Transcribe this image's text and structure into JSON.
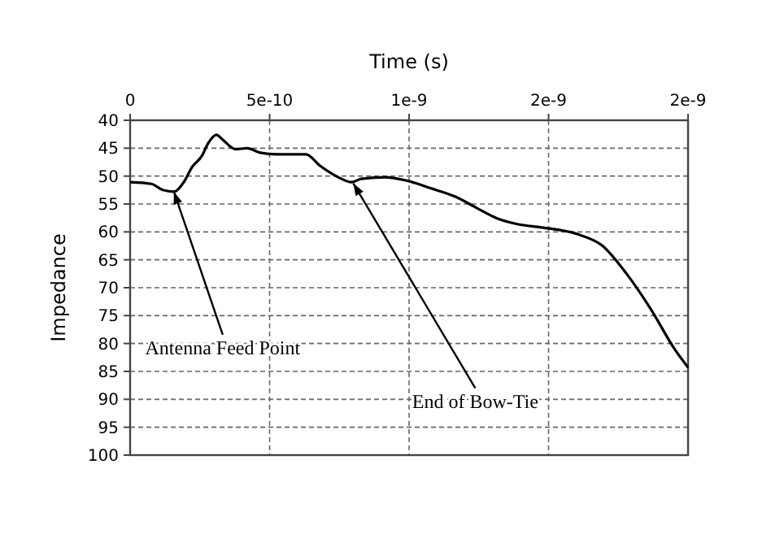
{
  "chart_data": {
    "type": "line",
    "xlabel": "Time (s)",
    "ylabel": "Impedance",
    "x": [
      0,
      7.6e-11,
      1.17e-10,
      1.57e-10,
      1.92e-10,
      2.22e-10,
      2.57e-10,
      2.8e-10,
      3.09e-10,
      3.32e-10,
      3.79e-10,
      4.2e-10,
      4.66e-10,
      5.25e-10,
      6.3e-10,
      6.82e-10,
      7.58e-10,
      7.93e-10,
      8.28e-10,
      9.15e-10,
      9.91e-10,
      1.079e-09,
      1.166e-09,
      1.242e-09,
      1.312e-09,
      1.388e-09,
      1.475e-09,
      1.603e-09,
      1.691e-09,
      1.778e-09,
      1.866e-09,
      1.953e-09,
      2e-09
    ],
    "series": [
      {
        "color": "#000000",
        "values": [
          51.1,
          51.4,
          52.5,
          52.8,
          51.1,
          48.4,
          46.4,
          44.1,
          42.6,
          43.5,
          45.2,
          45,
          45.8,
          46.1,
          46.1,
          48.2,
          50.5,
          51.1,
          50.5,
          50.2,
          50.8,
          52.2,
          53.7,
          55.7,
          57.5,
          58.6,
          59.2,
          60.4,
          62.4,
          67.4,
          73.8,
          81.1,
          84.3
        ]
      }
    ],
    "xlim": [
      0,
      2e-09
    ],
    "xticks": [
      0,
      {
        "value": 5e-10,
        "label": "5e-10"
      },
      {
        "value": 1e-09,
        "label": "1e-9"
      },
      {
        "value": 1.5e-09,
        "label": "2e-9"
      },
      {
        "value": 2e-09,
        "label": "2e-9"
      }
    ],
    "ylim": [
      100,
      40
    ],
    "yticks": [
      40,
      45,
      50,
      55,
      60,
      65,
      70,
      75,
      80,
      85,
      90,
      95,
      100
    ],
    "grid": true,
    "marker": "none",
    "line_style": "solid",
    "annotations": [
      {
        "text": "Antenna Feed Point",
        "x": 1.57e-10,
        "y": 52.8
      },
      {
        "text": "End of Bow-Tie",
        "x": 8e-10,
        "y": 51.3
      }
    ]
  }
}
